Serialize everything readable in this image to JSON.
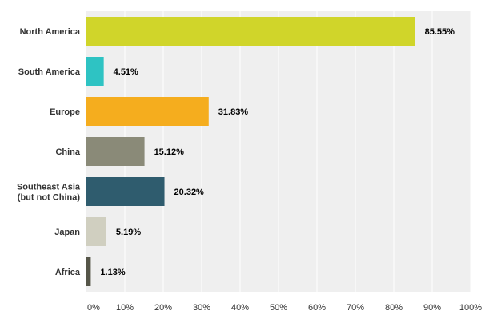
{
  "chart_data": {
    "type": "bar",
    "orientation": "horizontal",
    "categories": [
      [
        "North America"
      ],
      [
        "South America"
      ],
      [
        "Europe"
      ],
      [
        "China"
      ],
      [
        "Southeast Asia",
        "(but not China)"
      ],
      [
        "Japan"
      ],
      [
        "Africa"
      ]
    ],
    "values": [
      85.55,
      4.51,
      31.83,
      15.12,
      20.32,
      5.19,
      1.13
    ],
    "value_labels": [
      "85.55%",
      "4.51%",
      "31.83%",
      "15.12%",
      "20.32%",
      "5.19%",
      "1.13%"
    ],
    "bar_colors": [
      "#d0d52a",
      "#2ec3c3",
      "#f5ad1e",
      "#8a8a78",
      "#2f5c6e",
      "#d0cfc0",
      "#555548"
    ],
    "xlim": [
      0,
      100
    ],
    "ticks": [
      0,
      10,
      20,
      30,
      40,
      50,
      60,
      70,
      80,
      90,
      100
    ],
    "tick_labels": [
      "0%",
      "10%",
      "20%",
      "30%",
      "40%",
      "50%",
      "60%",
      "70%",
      "80%",
      "90%",
      "100%"
    ],
    "grid": true,
    "plot_background": "#efefef",
    "grid_color": "#ffffff",
    "title": "",
    "xlabel": "",
    "ylabel": ""
  }
}
